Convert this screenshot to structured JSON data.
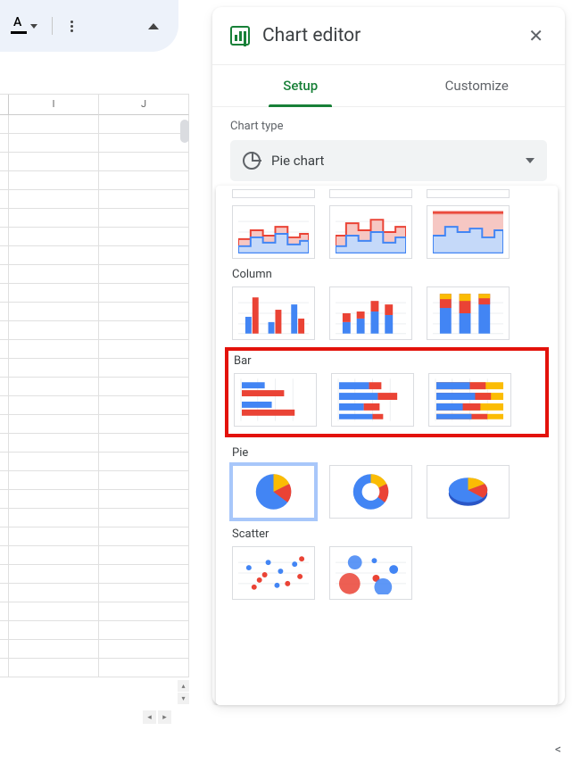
{
  "toolbar": {
    "text_color_letter": "A"
  },
  "sheet": {
    "columns": [
      "",
      "I",
      "J"
    ],
    "row_count": 30
  },
  "panel": {
    "title": "Chart editor",
    "tabs": {
      "setup": "Setup",
      "customize": "Customize",
      "active": "setup"
    },
    "chart_type_label": "Chart type",
    "chart_type_selected": "Pie chart"
  },
  "dropdown": {
    "categories": [
      {
        "key": "area_partial",
        "label": "",
        "highlight": false
      },
      {
        "key": "column",
        "label": "Column",
        "highlight": false
      },
      {
        "key": "bar",
        "label": "Bar",
        "highlight": true
      },
      {
        "key": "pie",
        "label": "Pie",
        "highlight": false
      },
      {
        "key": "scatter",
        "label": "Scatter",
        "highlight": false
      }
    ]
  },
  "colors": {
    "blue": "#4285f4",
    "red": "#ea4335",
    "orange": "#fbbc04",
    "blue_fill": "#c5d9f9",
    "red_fill": "#f6c7c3",
    "grid": "#eceff1",
    "thumb_border": "#dadce0",
    "highlight_border": "#e3120b",
    "selected_outline": "#a8c7fa"
  }
}
